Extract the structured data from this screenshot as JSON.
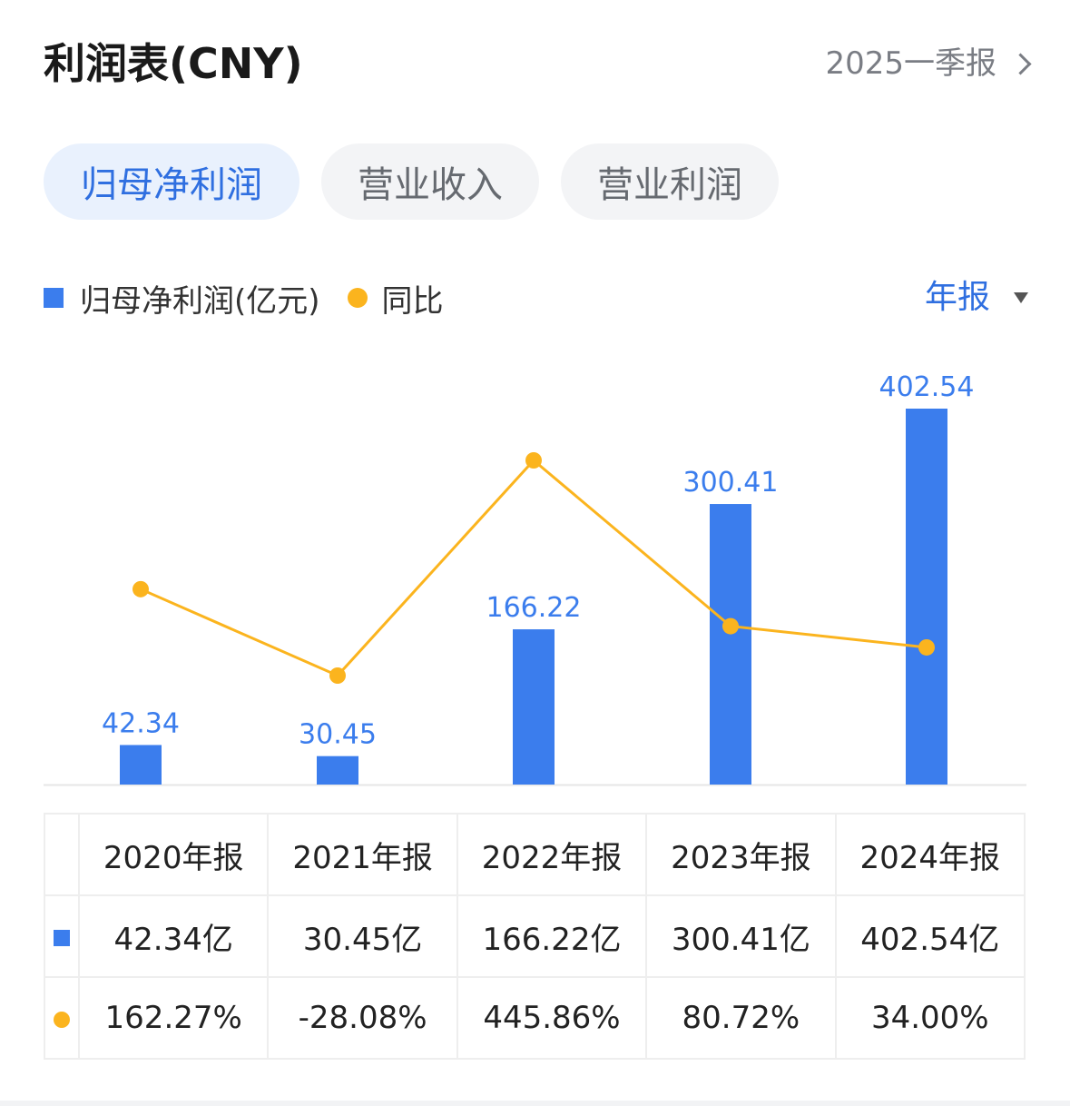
{
  "header": {
    "title": "利润表(CNY)",
    "period": "2025一季报"
  },
  "tabs": [
    {
      "label": "归母净利润",
      "active": true
    },
    {
      "label": "营业收入",
      "active": false
    },
    {
      "label": "营业利润",
      "active": false
    }
  ],
  "legend": {
    "bar_label": "归母净利润(亿元)",
    "line_label": "同比",
    "period_select": "年报"
  },
  "colors": {
    "bar": "#3b7ded",
    "line": "#fbb41e",
    "positive": "#e2453e",
    "negative": "#28a36b"
  },
  "chart_data": {
    "type": "bar",
    "categories": [
      "2020年报",
      "2021年报",
      "2022年报",
      "2023年报",
      "2024年报"
    ],
    "series": [
      {
        "name": "归母净利润(亿元)",
        "type": "bar",
        "values": [
          42.34,
          30.45,
          166.22,
          300.41,
          402.54
        ],
        "labels": [
          "42.34",
          "30.45",
          "166.22",
          "300.41",
          "402.54"
        ]
      },
      {
        "name": "同比",
        "type": "line",
        "values": [
          162.27,
          -28.08,
          445.86,
          80.72,
          34.0
        ],
        "unit": "%"
      }
    ]
  },
  "table": {
    "headers": [
      "2020年报",
      "2021年报",
      "2022年报",
      "2023年报",
      "2024年报"
    ],
    "values": [
      "42.34亿",
      "30.45亿",
      "166.22亿",
      "300.41亿",
      "402.54亿"
    ],
    "yoy": [
      "162.27%",
      "-28.08%",
      "445.86%",
      "80.72%",
      "34.00%"
    ]
  }
}
